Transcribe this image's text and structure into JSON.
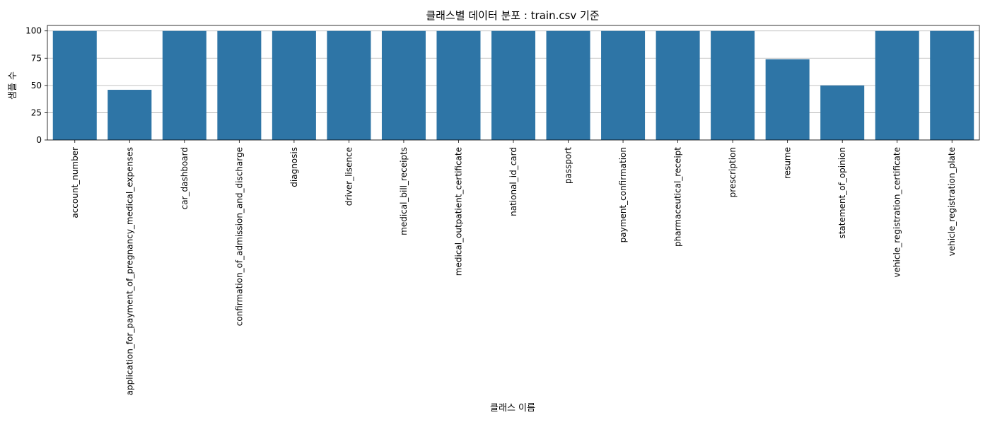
{
  "chart_data": {
    "type": "bar",
    "title": "클래스별 데이터 분포 : train.csv 기준",
    "xlabel": "클래스 이름",
    "ylabel": "샘플 수",
    "ylim": [
      0,
      105
    ],
    "yticks": [
      0,
      25,
      50,
      75,
      100
    ],
    "grid": "y",
    "color": "#2e75a6",
    "categories": [
      "account_number",
      "application_for_payment_of_pregnancy_medical_expenses",
      "car_dashboard",
      "confirmation_of_admission_and_discharge",
      "diagnosis",
      "driver_lisence",
      "medical_bill_receipts",
      "medical_outpatient_certificate",
      "national_id_card",
      "passport",
      "payment_confirmation",
      "pharmaceutical_receipt",
      "prescription",
      "resume",
      "statement_of_opinion",
      "vehicle_registration_certificate",
      "vehicle_registration_plate"
    ],
    "values": [
      100,
      46,
      100,
      100,
      100,
      100,
      100,
      100,
      100,
      100,
      100,
      100,
      100,
      74,
      50,
      100,
      100
    ]
  }
}
